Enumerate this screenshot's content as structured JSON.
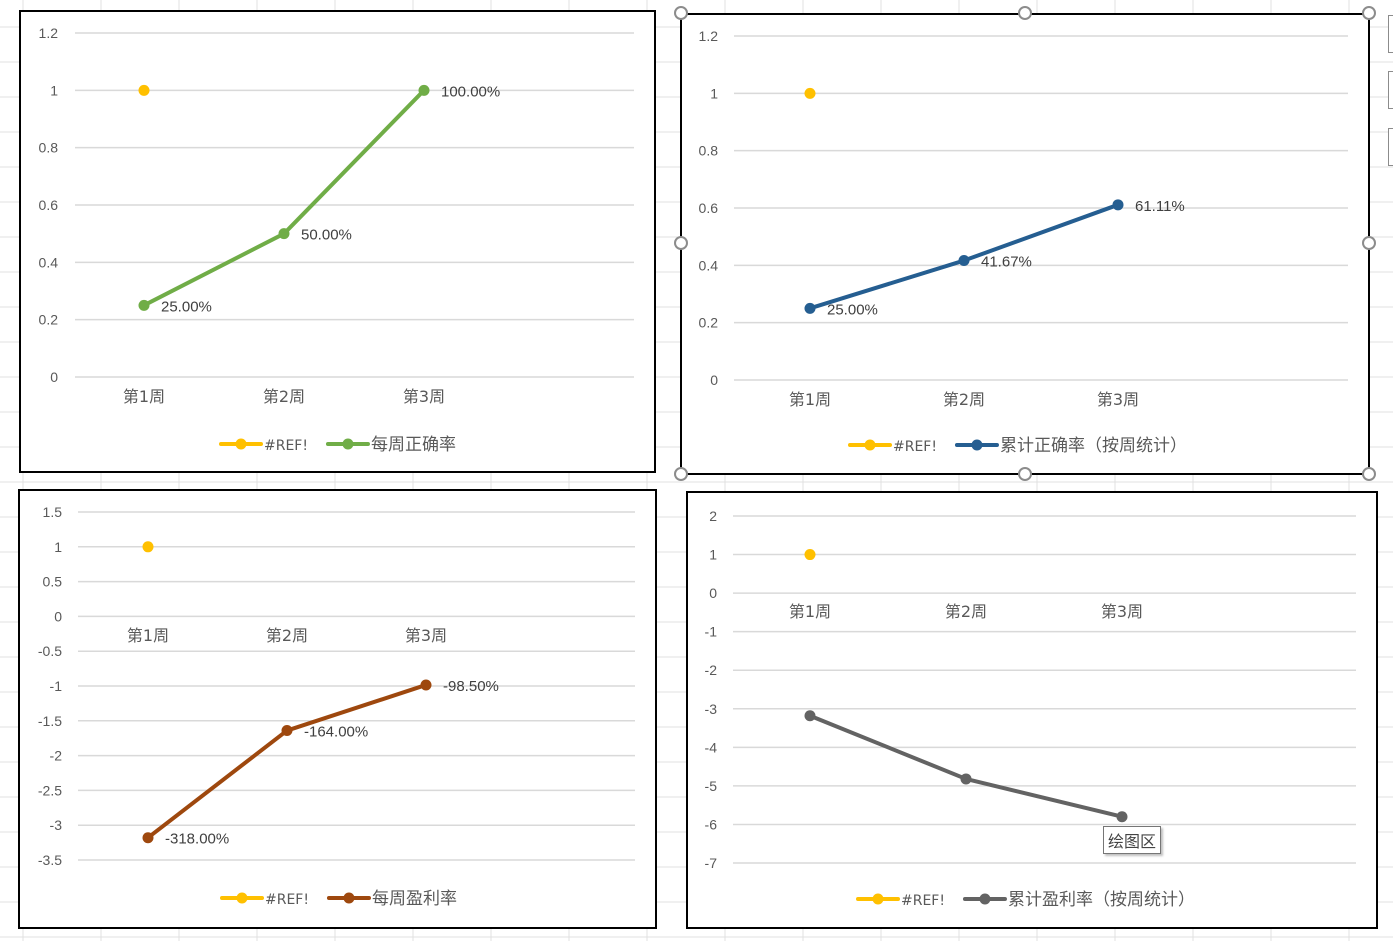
{
  "colors": {
    "ref_series": "#ffc000",
    "gridline": "#d9d9d9",
    "axis_text": "#595959",
    "label_text": "#404040"
  },
  "tooltip": {
    "label": "绘图区"
  },
  "chart_data": [
    {
      "type": "line",
      "title": "",
      "categories": [
        "第1周",
        "第2周",
        "第3周"
      ],
      "ylim": [
        0,
        1.2
      ],
      "yticks": [
        1.2,
        1,
        0.8,
        0.6,
        0.4,
        0.2,
        0
      ],
      "grid": true,
      "legend_position": "bottom",
      "series": [
        {
          "name": "#REF!",
          "color": "#ffc000",
          "values": [
            1,
            null,
            null
          ],
          "labels": []
        },
        {
          "name": "每周正确率",
          "color": "#70ad47",
          "values": [
            0.25,
            0.5,
            1.0
          ],
          "labels": [
            "25.00%",
            "50.00%",
            "100.00%"
          ]
        }
      ]
    },
    {
      "type": "line",
      "title": "",
      "categories": [
        "第1周",
        "第2周",
        "第3周"
      ],
      "ylim": [
        0,
        1.2
      ],
      "yticks": [
        1.2,
        1,
        0.8,
        0.6,
        0.4,
        0.2,
        0
      ],
      "grid": true,
      "legend_position": "bottom",
      "selected": true,
      "series": [
        {
          "name": "#REF!",
          "color": "#ffc000",
          "values": [
            1,
            null,
            null
          ],
          "labels": []
        },
        {
          "name": "累计正确率（按周统计）",
          "color": "#255e91",
          "values": [
            0.25,
            0.4167,
            0.6111
          ],
          "labels": [
            "25.00%",
            "41.67%",
            "61.11%"
          ]
        }
      ]
    },
    {
      "type": "line",
      "title": "",
      "categories": [
        "第1周",
        "第2周",
        "第3周"
      ],
      "ylim": [
        -3.5,
        1.5
      ],
      "yticks": [
        1.5,
        1,
        0.5,
        0,
        -0.5,
        -1,
        -1.5,
        -2,
        -2.5,
        -3,
        -3.5
      ],
      "grid": true,
      "legend_position": "bottom",
      "series": [
        {
          "name": "#REF!",
          "color": "#ffc000",
          "values": [
            1,
            null,
            null
          ],
          "labels": []
        },
        {
          "name": "每周盈利率",
          "color": "#9e480e",
          "values": [
            -3.18,
            -1.64,
            -0.985
          ],
          "labels": [
            "-318.00%",
            "-164.00%",
            "-98.50%"
          ]
        }
      ]
    },
    {
      "type": "line",
      "title": "",
      "categories": [
        "第1周",
        "第2周",
        "第3周"
      ],
      "ylim": [
        -7,
        2
      ],
      "yticks": [
        2,
        1,
        0,
        -1,
        -2,
        -3,
        -4,
        -5,
        -6,
        -7
      ],
      "grid": true,
      "legend_position": "bottom",
      "series": [
        {
          "name": "#REF!",
          "color": "#ffc000",
          "values": [
            1,
            null,
            null
          ],
          "labels": []
        },
        {
          "name": "累计盈利率（按周统计）",
          "color": "#636363",
          "values": [
            -3.18,
            -4.82,
            -5.8
          ],
          "labels": []
        }
      ]
    }
  ]
}
